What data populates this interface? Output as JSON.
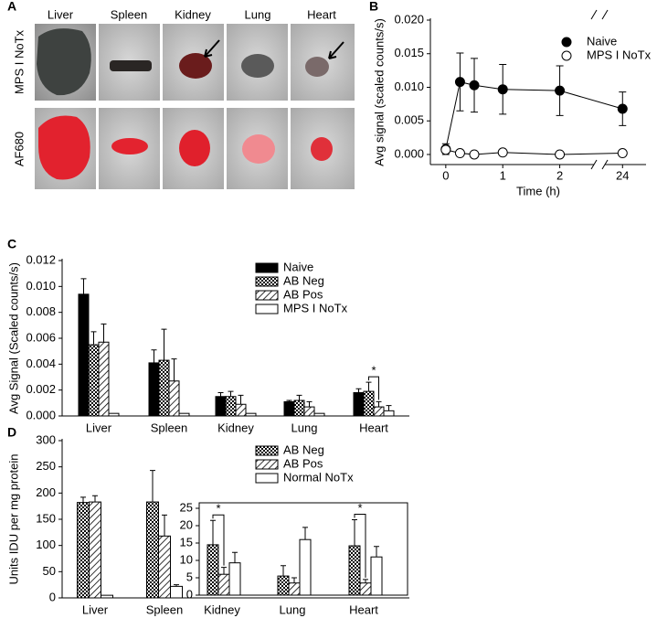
{
  "panel_labels": [
    "A",
    "B",
    "C",
    "D"
  ],
  "image_grid": {
    "columns": [
      "Liver",
      "Spleen",
      "Kidney",
      "Lung",
      "Heart"
    ],
    "rows": [
      "MPS I NoTx",
      "AF680"
    ]
  },
  "chart_data": [
    {
      "type": "line",
      "x_label": "Time (h)",
      "y_label": "Avg signal (scaled counts/s)",
      "x": [
        0,
        0.25,
        0.5,
        1,
        2,
        24
      ],
      "xlim": [
        -0.27,
        24.4
      ],
      "x_break": [
        2.6,
        23.7
      ],
      "xticks": [
        0,
        1,
        2,
        24
      ],
      "ylim": [
        -0.0015,
        0.02
      ],
      "yticks": [
        {
          "value": 0,
          "label": "0.000"
        },
        {
          "value": 0.005,
          "label": "0.005"
        },
        {
          "value": 0.01,
          "label": "0.010"
        },
        {
          "value": 0.015,
          "label": "0.015"
        },
        {
          "value": 0.02,
          "label": "0.020"
        }
      ],
      "legend": "upper right",
      "series": [
        {
          "name": "Naive",
          "color": "#000000",
          "marker": "filled",
          "values": [
            0.0008,
            0.0108,
            0.0103,
            0.0097,
            0.0095,
            0.0068
          ],
          "errors": [
            0.0008,
            0.0043,
            0.004,
            0.0037,
            0.0037,
            0.0025
          ]
        },
        {
          "name": "MPS I NoTx",
          "color": "#000000",
          "marker": "open",
          "values": [
            0.0007,
            0.0002,
            0.0,
            0.0003,
            0.0,
            0.0002
          ],
          "errors": [
            0.0005,
            0.0002,
            0.0002,
            0.0002,
            0.0001,
            0.0001
          ]
        }
      ]
    },
    {
      "type": "bar",
      "y_label": "Avg Signal (Scaled counts/s)",
      "categories": [
        "Liver",
        "Spleen",
        "Kidney",
        "Lung",
        "Heart"
      ],
      "ylim": [
        0,
        0.012
      ],
      "yticks": [
        {
          "value": 0,
          "label": "0.000"
        },
        {
          "value": 0.002,
          "label": "0.002"
        },
        {
          "value": 0.004,
          "label": "0.004"
        },
        {
          "value": 0.006,
          "label": "0.006"
        },
        {
          "value": 0.008,
          "label": "0.008"
        },
        {
          "value": 0.01,
          "label": "0.010"
        },
        {
          "value": 0.012,
          "label": "0.012"
        }
      ],
      "legend": "upper right",
      "series": [
        {
          "name": "Naive",
          "color": "#000000",
          "pattern": "solid",
          "values": [
            0.0094,
            0.0041,
            0.0015,
            0.0011,
            0.0018
          ],
          "errors": [
            0.0012,
            0.001,
            0.0003,
            0.0001,
            0.0003
          ]
        },
        {
          "name": "AB Neg",
          "color": "#000000",
          "pattern": "checker",
          "values": [
            0.0055,
            0.0043,
            0.0015,
            0.0012,
            0.0019
          ],
          "errors": [
            0.001,
            0.0024,
            0.0004,
            0.0004,
            0.0007
          ]
        },
        {
          "name": "AB Pos",
          "color": "#000000",
          "pattern": "hatch",
          "values": [
            0.0057,
            0.0027,
            0.0009,
            0.0007,
            0.0007
          ],
          "errors": [
            0.0014,
            0.0017,
            0.0007,
            0.0004,
            0.0004
          ]
        },
        {
          "name": "MPS I NoTx",
          "color": "#ffffff",
          "pattern": "solid",
          "values": [
            0.0002,
            0.0002,
            0.0002,
            0.0002,
            0.0004
          ],
          "errors": [
            null,
            null,
            null,
            null,
            0.0004
          ]
        }
      ],
      "annotations": [
        {
          "text": "*"
        }
      ]
    },
    {
      "type": "bar",
      "y_label": "Units IDU per mg protein",
      "categories": [
        "Liver",
        "Spleen",
        "Kidney",
        "Lung",
        "Heart"
      ],
      "ylim": [
        0,
        300
      ],
      "yticks": [
        0,
        50,
        100,
        150,
        200,
        250,
        300
      ],
      "legend": "upper right",
      "series": [
        {
          "name": "AB Neg",
          "color": "#000000",
          "pattern": "checker",
          "values": [
            182,
            183,
            null,
            null,
            null
          ],
          "errors": [
            10,
            60,
            null,
            null,
            null
          ]
        },
        {
          "name": "AB Pos",
          "color": "#000000",
          "pattern": "hatch",
          "values": [
            183,
            118,
            null,
            null,
            null
          ],
          "errors": [
            12,
            40,
            null,
            null,
            null
          ]
        },
        {
          "name": "Normal NoTx",
          "color": "#ffffff",
          "pattern": "solid",
          "values": [
            5,
            22,
            null,
            null,
            null
          ],
          "errors": [
            null,
            3,
            null,
            null,
            null
          ]
        }
      ]
    },
    {
      "type": "bar",
      "ylim": [
        0,
        25
      ],
      "yticks": [
        0,
        5,
        10,
        15,
        20,
        25
      ],
      "series": [
        {
          "color": "#000000",
          "pattern": "checker",
          "values": [
            14.5,
            5.5,
            14.2
          ],
          "errors": [
            7,
            3,
            7.5
          ]
        },
        {
          "color": "#000000",
          "pattern": "hatch",
          "values": [
            6,
            3.5,
            3.5
          ],
          "errors": [
            2,
            1.5,
            1
          ]
        },
        {
          "color": "#ffffff",
          "pattern": "solid",
          "values": [
            9.3,
            16,
            11
          ],
          "errors": [
            3,
            3.5,
            3
          ]
        }
      ],
      "annotations": [
        {
          "text": "*"
        },
        {
          "text": "*"
        }
      ]
    }
  ]
}
